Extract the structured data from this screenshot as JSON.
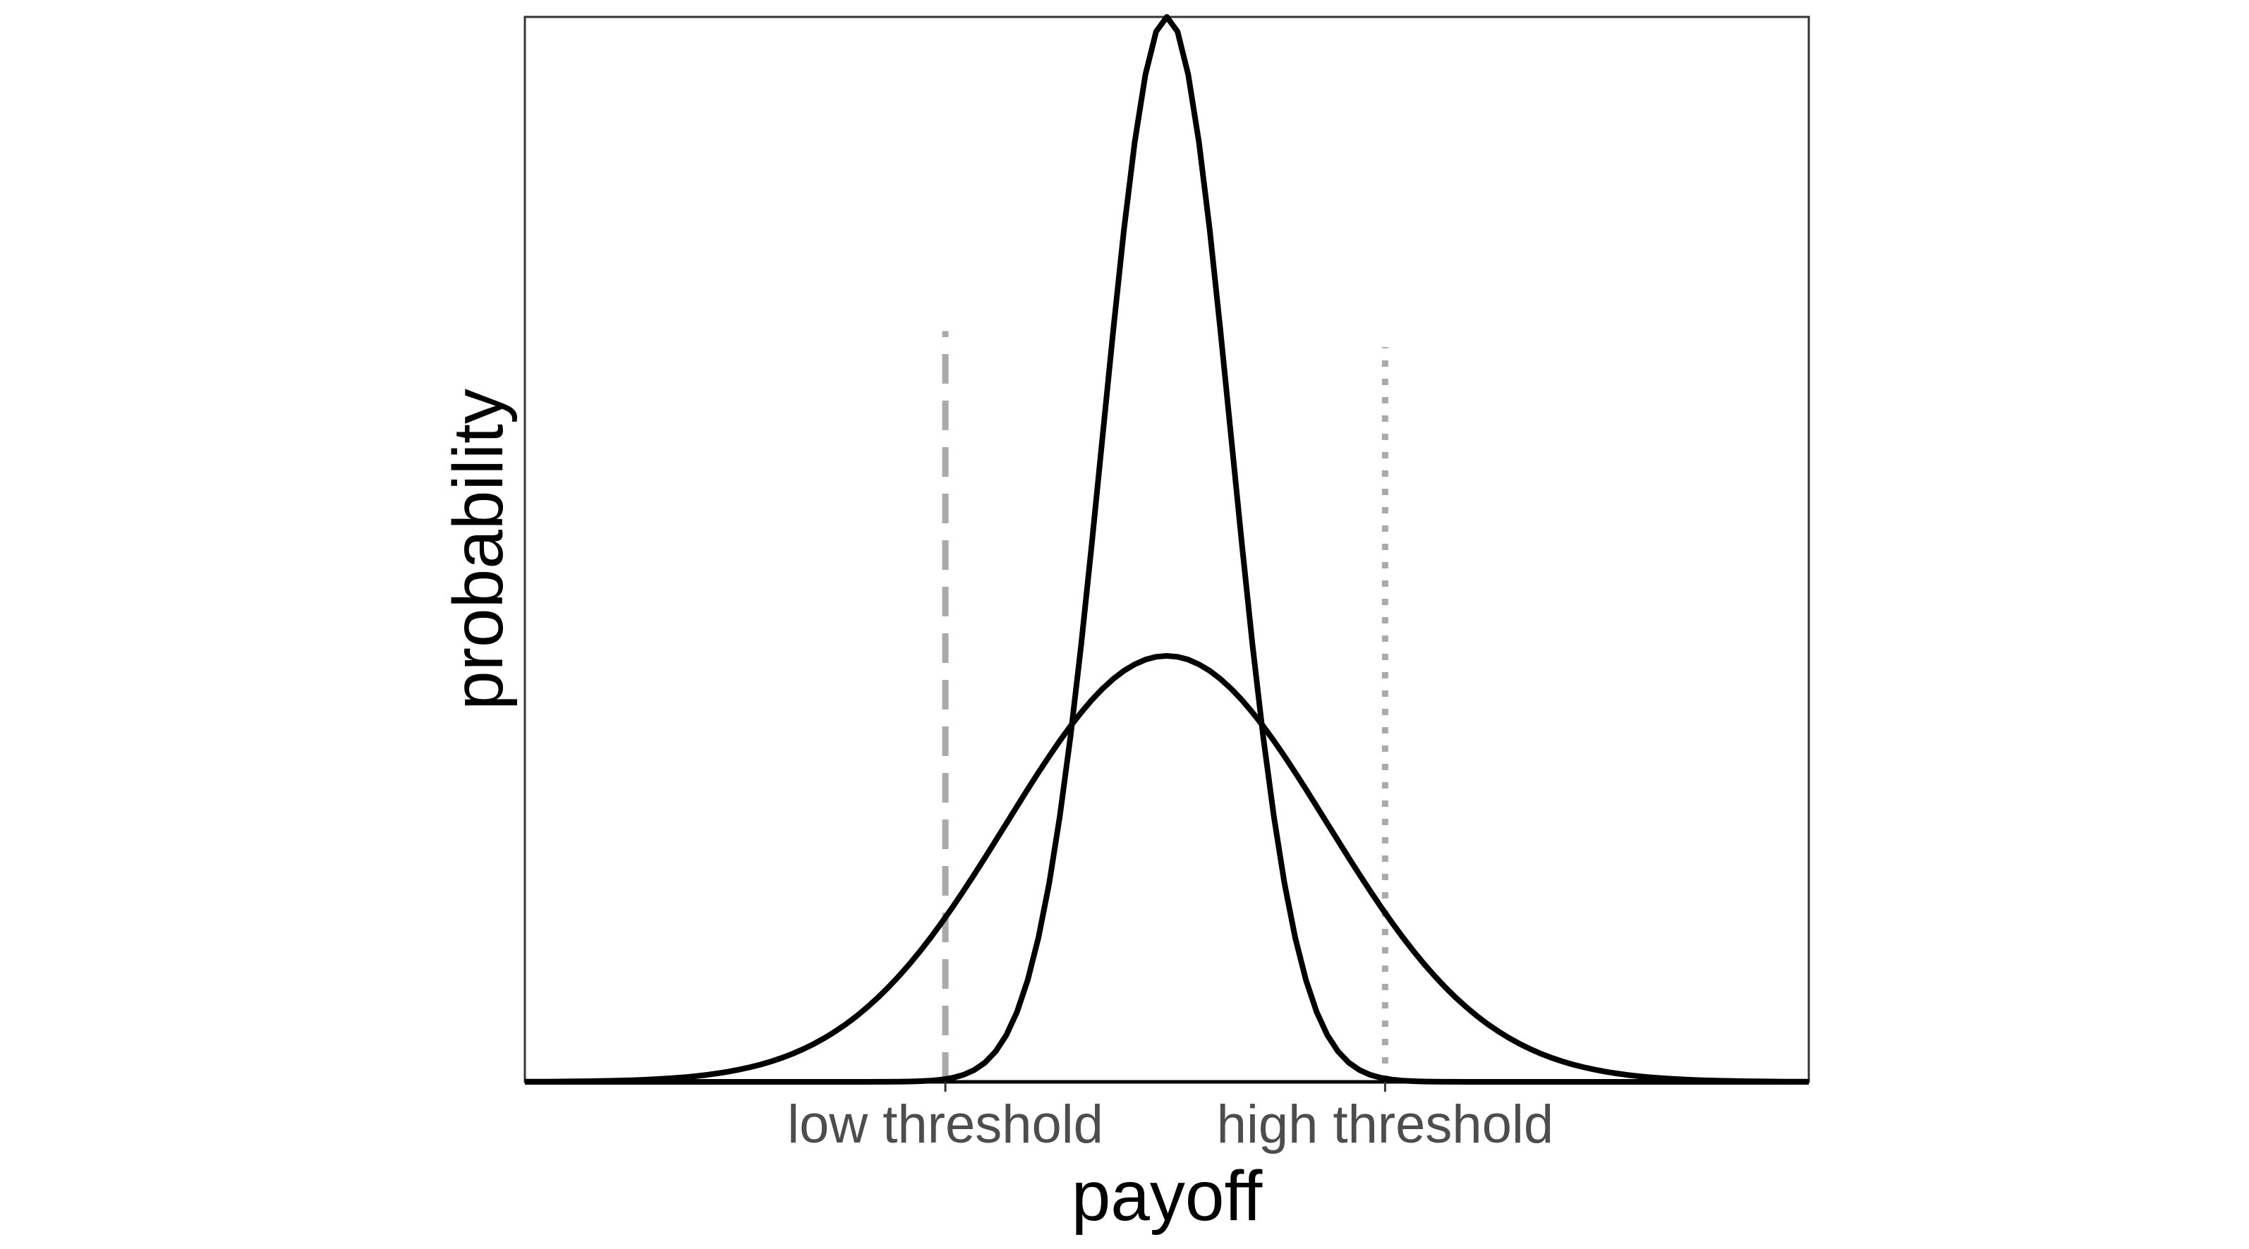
{
  "chart_data": {
    "type": "line",
    "title": "",
    "xlabel": "payoff",
    "ylabel": "probability",
    "xlim": [
      -4,
      4
    ],
    "ylim": [
      0,
      1.0
    ],
    "grid": false,
    "legend": "none",
    "x_ticks": [
      {
        "value": -1.38,
        "label": "low threshold"
      },
      {
        "value": 1.36,
        "label": "high threshold"
      }
    ],
    "series": [
      {
        "style": "solid",
        "color": "#000000",
        "distribution": "normal",
        "mean": 0.0,
        "sd": 0.4,
        "peak": 1.0
      },
      {
        "style": "solid",
        "color": "#000000",
        "distribution": "normal",
        "mean": 0.0,
        "sd": 1.0,
        "peak": 0.4
      }
    ],
    "reference_lines": [
      {
        "x": -1.38,
        "y_top": 0.705,
        "style": "dashed",
        "color": "#aaaaaa"
      },
      {
        "x": 1.36,
        "y_top": 0.69,
        "style": "dotted",
        "color": "#aaaaaa"
      }
    ]
  }
}
